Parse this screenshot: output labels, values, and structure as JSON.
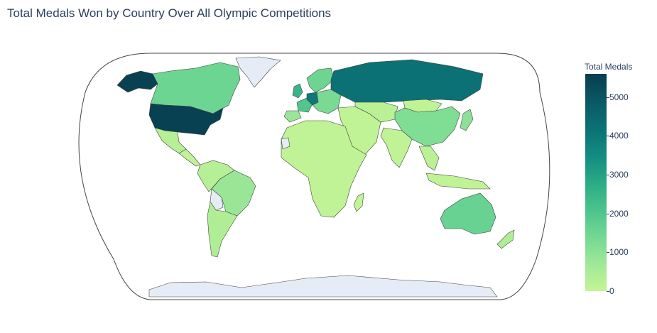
{
  "title": "Total Medals Won by Country Over All Olympic Competitions",
  "colorbar": {
    "title": "Total Medals",
    "min": 0,
    "max": 5600,
    "ticks": [
      {
        "label": "5000",
        "value": 5000
      },
      {
        "label": "4000",
        "value": 4000
      },
      {
        "label": "3000",
        "value": 3000
      },
      {
        "label": "2000",
        "value": 2000
      },
      {
        "label": "1000",
        "value": 1000
      },
      {
        "label": "0",
        "value": 0
      }
    ]
  },
  "colors": {
    "scale_low": "#c4f594",
    "scale_high": "#083d4f",
    "no_data": "#e5ecf6",
    "border": "#444444"
  },
  "projection": "natural-earth",
  "regions": [
    {
      "name": "usa",
      "level": 5500
    },
    {
      "name": "alaska",
      "level": 5500
    },
    {
      "name": "canada",
      "level": 1500
    },
    {
      "name": "greenland",
      "level": null
    },
    {
      "name": "mexico",
      "level": 300
    },
    {
      "name": "central-america",
      "level": 100
    },
    {
      "name": "south-america-north",
      "level": 300
    },
    {
      "name": "brazil",
      "level": 800
    },
    {
      "name": "argentina",
      "level": 400
    },
    {
      "name": "bolivia",
      "level": null
    },
    {
      "name": "russia",
      "level": 4200
    },
    {
      "name": "china",
      "level": 1200
    },
    {
      "name": "central-asia",
      "level": 200
    },
    {
      "name": "india",
      "level": 100
    },
    {
      "name": "middle-east",
      "level": 100
    },
    {
      "name": "africa",
      "level": 100
    },
    {
      "name": "western-sahara",
      "level": null
    },
    {
      "name": "uk",
      "level": 2500
    },
    {
      "name": "germany",
      "level": 4000
    },
    {
      "name": "france",
      "level": 2000
    },
    {
      "name": "scandinavia",
      "level": 1500
    },
    {
      "name": "iberia",
      "level": 800
    },
    {
      "name": "eastern-europe",
      "level": 1300
    },
    {
      "name": "mongolia",
      "level": 100
    },
    {
      "name": "japan",
      "level": 1000
    },
    {
      "name": "southeast-asia",
      "level": 200
    },
    {
      "name": "indonesia",
      "level": 100
    },
    {
      "name": "australia",
      "level": 1600
    },
    {
      "name": "new-zealand",
      "level": 400
    },
    {
      "name": "madagascar",
      "level": 50
    },
    {
      "name": "antarctica",
      "level": null
    }
  ]
}
